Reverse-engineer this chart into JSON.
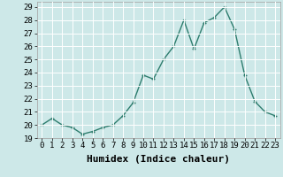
{
  "x": [
    0,
    1,
    2,
    3,
    4,
    5,
    6,
    7,
    8,
    9,
    10,
    11,
    12,
    13,
    14,
    15,
    16,
    17,
    18,
    19,
    20,
    21,
    22,
    23
  ],
  "y": [
    20.0,
    20.5,
    20.0,
    19.8,
    19.3,
    19.5,
    19.8,
    20.0,
    20.7,
    21.7,
    23.8,
    23.5,
    25.0,
    26.0,
    28.0,
    25.8,
    27.8,
    28.2,
    29.0,
    27.3,
    23.8,
    21.8,
    21.0,
    20.7
  ],
  "line_color": "#2e7d6e",
  "marker": "+",
  "marker_color": "#2e7d6e",
  "bg_color": "#cde8e8",
  "grid_color": "#ffffff",
  "xlabel": "Humidex (Indice chaleur)",
  "xlim": [
    -0.5,
    23.5
  ],
  "ylim": [
    19.0,
    29.4
  ],
  "yticks": [
    19,
    20,
    21,
    22,
    23,
    24,
    25,
    26,
    27,
    28,
    29
  ],
  "xticks": [
    0,
    1,
    2,
    3,
    4,
    5,
    6,
    7,
    8,
    9,
    10,
    11,
    12,
    13,
    14,
    15,
    16,
    17,
    18,
    19,
    20,
    21,
    22,
    23
  ],
  "tick_fontsize": 6.5,
  "xlabel_fontsize": 8,
  "line_width": 1.0,
  "marker_size": 3.5,
  "marker_linewidth": 1.0
}
